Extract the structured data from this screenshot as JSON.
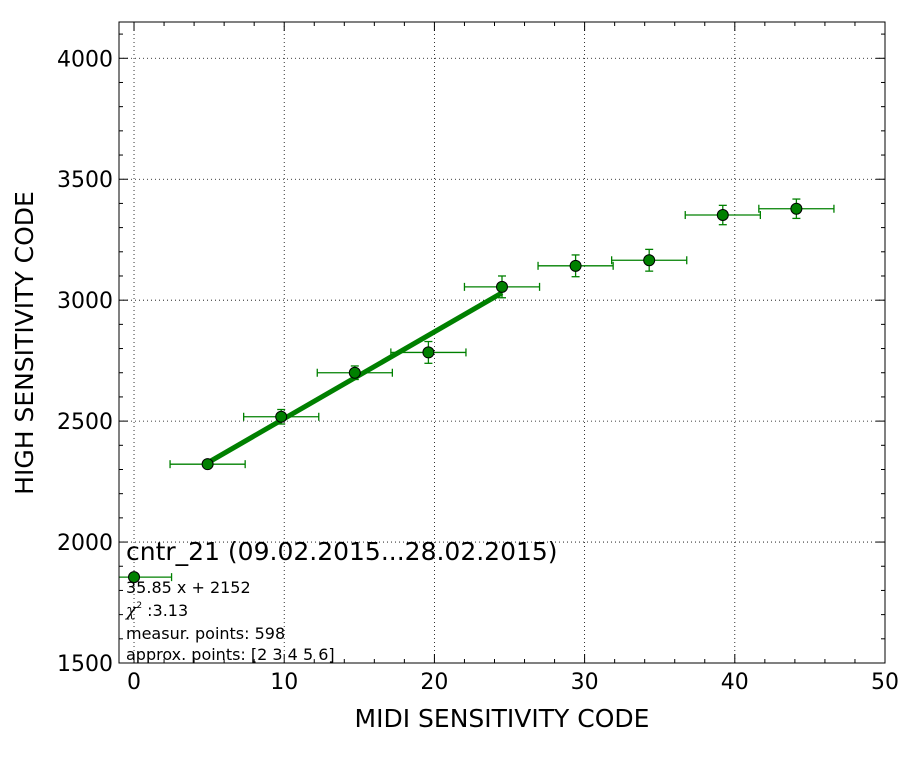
{
  "chart_data": {
    "type": "scatter",
    "xlabel": "MIDI SENSITIVITY CODE",
    "ylabel": "HIGH SENSITIVITY CODE",
    "xlim": [
      -1,
      50
    ],
    "ylim": [
      1500,
      4150
    ],
    "xticks": [
      0,
      10,
      20,
      30,
      40,
      50
    ],
    "yticks": [
      1500,
      2000,
      2500,
      3000,
      3500,
      4000
    ],
    "xtick_labels": [
      "0",
      "10",
      "20",
      "30",
      "40",
      "50"
    ],
    "ytick_labels": [
      "1500",
      "2000",
      "2500",
      "3000",
      "3500",
      "4000"
    ],
    "grid": true,
    "series": [
      {
        "color": "#008000",
        "points": [
          {
            "x": 0.0,
            "y": 1855,
            "xerr": 2.5,
            "yerr": 0
          },
          {
            "x": 4.9,
            "y": 2322,
            "xerr": 2.5,
            "yerr": 12
          },
          {
            "x": 9.8,
            "y": 2518,
            "xerr": 2.5,
            "yerr": 30
          },
          {
            "x": 14.7,
            "y": 2700,
            "xerr": 2.5,
            "yerr": 28
          },
          {
            "x": 19.6,
            "y": 2784,
            "xerr": 2.5,
            "yerr": 45
          },
          {
            "x": 24.5,
            "y": 3055,
            "xerr": 2.5,
            "yerr": 45
          },
          {
            "x": 29.4,
            "y": 3142,
            "xerr": 2.5,
            "yerr": 45
          },
          {
            "x": 34.3,
            "y": 3165,
            "xerr": 2.5,
            "yerr": 45
          },
          {
            "x": 39.2,
            "y": 3352,
            "xerr": 2.5,
            "yerr": 40
          },
          {
            "x": 44.1,
            "y": 3378,
            "xerr": 2.5,
            "yerr": 40
          }
        ]
      }
    ],
    "fit": {
      "slope": 35.85,
      "intercept": 2152,
      "x_range": [
        4.9,
        24.5
      ],
      "color": "#008000"
    },
    "annotation": {
      "title": "cntr_21 (09.02.2015...28.02.2015)",
      "equation": "35.85 x + 2152",
      "chi_symbol": "χ",
      "chi_sup": "2",
      "chi_value": " :3.13",
      "measur_points": "measur. points: 598",
      "approx_points": "approx. points: [2 3 4 5 6]"
    }
  }
}
